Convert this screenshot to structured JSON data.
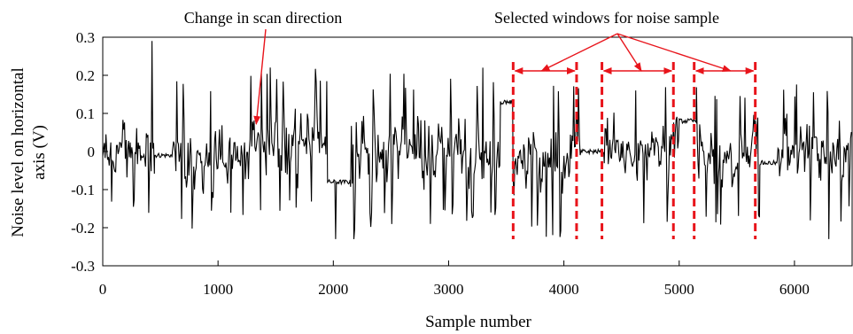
{
  "chart_data": {
    "type": "line",
    "xlabel": "Sample number",
    "ylabel_lines": [
      "Noise level on horizontal",
      "axis (V)"
    ],
    "xlim": [
      0,
      6500
    ],
    "ylim": [
      -0.3,
      0.3
    ],
    "x_ticks": [
      0,
      1000,
      2000,
      3000,
      4000,
      5000,
      6000
    ],
    "x_tick_labels": [
      "0",
      "1000",
      "2000",
      "3000",
      "4000",
      "5000",
      "6000"
    ],
    "y_ticks": [
      0.3,
      0.2,
      0.1,
      0,
      -0.1,
      -0.2,
      -0.3
    ],
    "y_tick_labels": [
      "0.3",
      "0.2",
      "0.1",
      "0",
      "-0.1",
      "-0.2",
      "-0.3"
    ],
    "grid": false,
    "series_color": "#000000",
    "annotation_color": "#e8141b",
    "segments": [
      {
        "start": 0,
        "end": 450,
        "kind": "noise",
        "amp": 0.15,
        "base": 0.0
      },
      {
        "start": 450,
        "end": 600,
        "kind": "flat",
        "base": -0.01
      },
      {
        "start": 600,
        "end": 1250,
        "kind": "noise",
        "amp": 0.17,
        "base": -0.01
      },
      {
        "start": 1250,
        "end": 1950,
        "kind": "noise",
        "amp": 0.17,
        "base": 0.03
      },
      {
        "start": 1950,
        "end": 2150,
        "kind": "flat",
        "base": -0.08
      },
      {
        "start": 2150,
        "end": 2800,
        "kind": "noise",
        "amp": 0.18,
        "base": 0.0
      },
      {
        "start": 2800,
        "end": 3450,
        "kind": "noise",
        "amp": 0.17,
        "base": 0.0
      },
      {
        "start": 3450,
        "end": 3560,
        "kind": "flat",
        "base": 0.13
      },
      {
        "start": 3560,
        "end": 4150,
        "kind": "noise",
        "amp": 0.18,
        "base": -0.02
      },
      {
        "start": 4150,
        "end": 4350,
        "kind": "flat",
        "base": 0.0
      },
      {
        "start": 4350,
        "end": 5000,
        "kind": "noise",
        "amp": 0.17,
        "base": 0.0
      },
      {
        "start": 5000,
        "end": 5150,
        "kind": "flat",
        "base": 0.08
      },
      {
        "start": 5150,
        "end": 5700,
        "kind": "noise",
        "amp": 0.17,
        "base": -0.02
      },
      {
        "start": 5700,
        "end": 5850,
        "kind": "flat",
        "base": -0.03
      },
      {
        "start": 5850,
        "end": 6500,
        "kind": "noise",
        "amp": 0.16,
        "base": 0.0
      }
    ],
    "spikes": [
      {
        "x": 430,
        "y": 0.29
      },
      {
        "x": 2020,
        "y": -0.23
      },
      {
        "x": 2180,
        "y": -0.23
      },
      {
        "x": 3300,
        "y": 0.22
      },
      {
        "x": 6300,
        "y": -0.23
      }
    ],
    "selected_windows": [
      {
        "start": 3560,
        "end": 4110
      },
      {
        "start": 4330,
        "end": 4950
      },
      {
        "start": 5130,
        "end": 5660
      }
    ],
    "scan_change_x": 1270,
    "annotations": {
      "scan_change": "Change in scan direction",
      "windows": "Selected windows for noise sample"
    }
  }
}
